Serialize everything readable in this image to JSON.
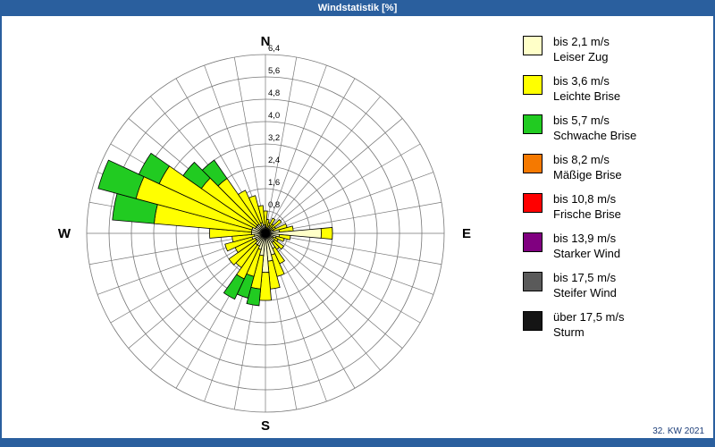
{
  "window": {
    "title": "Windstatistik [%]",
    "week_label": "32. KW 2021"
  },
  "colors": {
    "titlebar": "#2a5f9e",
    "frame": "#2a5f9e",
    "grid": "#777777",
    "petal_outline": "#000000"
  },
  "compass": {
    "north": "N",
    "east": "E",
    "south": "S",
    "west": "W"
  },
  "axis_ticks": [
    "0,8",
    "1,6",
    "2,4",
    "3,2",
    "4,0",
    "4,8",
    "5,6",
    "6,4"
  ],
  "legend": [
    {
      "color": "#ffffc8",
      "speed": "bis 2,1 m/s",
      "name": "Leiser Zug"
    },
    {
      "color": "#ffff00",
      "speed": "bis 3,6 m/s",
      "name": "Leichte Brise"
    },
    {
      "color": "#21cb21",
      "speed": "bis 5,7 m/s",
      "name": "Schwache Brise"
    },
    {
      "color": "#f57900",
      "speed": "bis 8,2 m/s",
      "name": "Mäßige Brise"
    },
    {
      "color": "#ff0000",
      "speed": "bis 10,8 m/s",
      "name": "Frische Brise"
    },
    {
      "color": "#800080",
      "speed": "bis 13,9 m/s",
      "name": "Starker Wind"
    },
    {
      "color": "#5a5a5a",
      "speed": "bis 17,5 m/s",
      "name": "Steifer Wind"
    },
    {
      "color": "#151515",
      "speed": "über 17,5 m/s",
      "name": "Sturm"
    }
  ],
  "chart_data": {
    "type": "windrose",
    "title": "Windstatistik [%]",
    "units": "%",
    "ring_step": 0.8,
    "rmax": 6.4,
    "grid": true,
    "legend_position": "right",
    "directions_deg": [
      0,
      10,
      20,
      30,
      40,
      50,
      60,
      70,
      80,
      90,
      100,
      110,
      120,
      130,
      140,
      150,
      160,
      170,
      180,
      190,
      200,
      210,
      220,
      230,
      240,
      250,
      260,
      270,
      280,
      290,
      300,
      310,
      320,
      330,
      340,
      350
    ],
    "series": [
      {
        "name": "bis 2,1 m/s",
        "values": [
          0.3,
          0.2,
          0.2,
          0.3,
          0.2,
          0.3,
          0.2,
          0.3,
          0.5,
          2.0,
          0.5,
          0.4,
          0.3,
          0.4,
          0.4,
          0.6,
          0.8,
          1.0,
          1.4,
          0.8,
          0.6,
          0.5,
          0.5,
          0.4,
          0.4,
          0.5,
          0.4,
          0.5,
          0.5,
          0.5,
          0.4,
          0.4,
          0.4,
          0.3,
          0.4,
          0.3
        ]
      },
      {
        "name": "bis 3,6 m/s",
        "values": [
          0.5,
          0.3,
          0.2,
          0.3,
          0.2,
          0.4,
          0.2,
          0.5,
          0.5,
          0.4,
          0.4,
          0.3,
          0.2,
          0.4,
          0.3,
          0.6,
          0.8,
          1.0,
          1.0,
          1.2,
          1.0,
          1.3,
          1.0,
          1.2,
          0.8,
          1.0,
          0.8,
          1.5,
          3.5,
          4.3,
          3.8,
          2.4,
          2.0,
          1.4,
          1.0,
          0.7
        ]
      },
      {
        "name": "bis 5,7 m/s",
        "values": [
          0,
          0,
          0,
          0,
          0,
          0,
          0,
          0,
          0,
          0,
          0,
          0,
          0,
          0,
          0,
          0,
          0,
          0,
          0,
          0.6,
          0.8,
          0.8,
          0,
          0,
          0,
          0,
          0,
          0,
          1.5,
          1.4,
          0.8,
          0.8,
          0.8,
          0,
          0,
          0
        ]
      },
      {
        "name": "bis 8,2 m/s",
        "values": [
          0,
          0,
          0,
          0,
          0,
          0,
          0,
          0,
          0,
          0,
          0,
          0,
          0,
          0,
          0,
          0,
          0,
          0,
          0,
          0,
          0,
          0,
          0,
          0,
          0,
          0,
          0,
          0,
          0,
          0,
          0,
          0,
          0,
          0,
          0,
          0
        ]
      },
      {
        "name": "bis 10,8 m/s",
        "values": [
          0,
          0,
          0,
          0,
          0,
          0,
          0,
          0,
          0,
          0,
          0,
          0,
          0,
          0,
          0,
          0,
          0,
          0,
          0,
          0,
          0,
          0,
          0,
          0,
          0,
          0,
          0,
          0,
          0,
          0,
          0,
          0,
          0,
          0,
          0,
          0
        ]
      },
      {
        "name": "bis 13,9 m/s",
        "values": [
          0,
          0,
          0,
          0,
          0,
          0,
          0,
          0,
          0,
          0,
          0,
          0,
          0,
          0,
          0,
          0,
          0,
          0,
          0,
          0,
          0,
          0,
          0,
          0,
          0,
          0,
          0,
          0,
          0,
          0,
          0,
          0,
          0,
          0,
          0,
          0
        ]
      },
      {
        "name": "bis 17,5 m/s",
        "values": [
          0,
          0,
          0,
          0,
          0,
          0,
          0,
          0,
          0,
          0,
          0,
          0,
          0,
          0,
          0,
          0,
          0,
          0,
          0,
          0,
          0,
          0,
          0,
          0,
          0,
          0,
          0,
          0,
          0,
          0,
          0,
          0,
          0,
          0,
          0,
          0
        ]
      },
      {
        "name": "über 17,5 m/s",
        "values": [
          0,
          0,
          0,
          0,
          0,
          0,
          0,
          0,
          0,
          0,
          0,
          0,
          0,
          0,
          0,
          0,
          0,
          0,
          0,
          0,
          0,
          0,
          0,
          0,
          0,
          0,
          0,
          0,
          0,
          0,
          0,
          0,
          0,
          0,
          0,
          0
        ]
      }
    ]
  }
}
